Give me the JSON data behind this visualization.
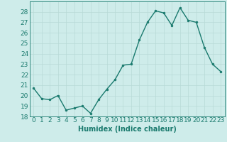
{
  "x": [
    0,
    1,
    2,
    3,
    4,
    5,
    6,
    7,
    8,
    9,
    10,
    11,
    12,
    13,
    14,
    15,
    16,
    17,
    18,
    19,
    20,
    21,
    22,
    23
  ],
  "y": [
    20.7,
    19.7,
    19.6,
    20.0,
    18.6,
    18.8,
    19.0,
    18.3,
    19.6,
    20.6,
    21.5,
    22.9,
    23.0,
    25.3,
    27.0,
    28.1,
    27.9,
    26.7,
    28.4,
    27.2,
    27.0,
    24.6,
    23.0,
    22.3
  ],
  "line_color": "#1a7a6e",
  "marker": "o",
  "markersize": 2.0,
  "linewidth": 1.0,
  "bg_color": "#ceecea",
  "grid_color": "#b8dad7",
  "xlabel": "Humidex (Indice chaleur)",
  "xlim": [
    -0.5,
    23.5
  ],
  "ylim": [
    18,
    29
  ],
  "yticks": [
    18,
    19,
    20,
    21,
    22,
    23,
    24,
    25,
    26,
    27,
    28
  ],
  "xticks": [
    0,
    1,
    2,
    3,
    4,
    5,
    6,
    7,
    8,
    9,
    10,
    11,
    12,
    13,
    14,
    15,
    16,
    17,
    18,
    19,
    20,
    21,
    22,
    23
  ],
  "xlabel_fontsize": 7,
  "tick_fontsize": 6.5
}
